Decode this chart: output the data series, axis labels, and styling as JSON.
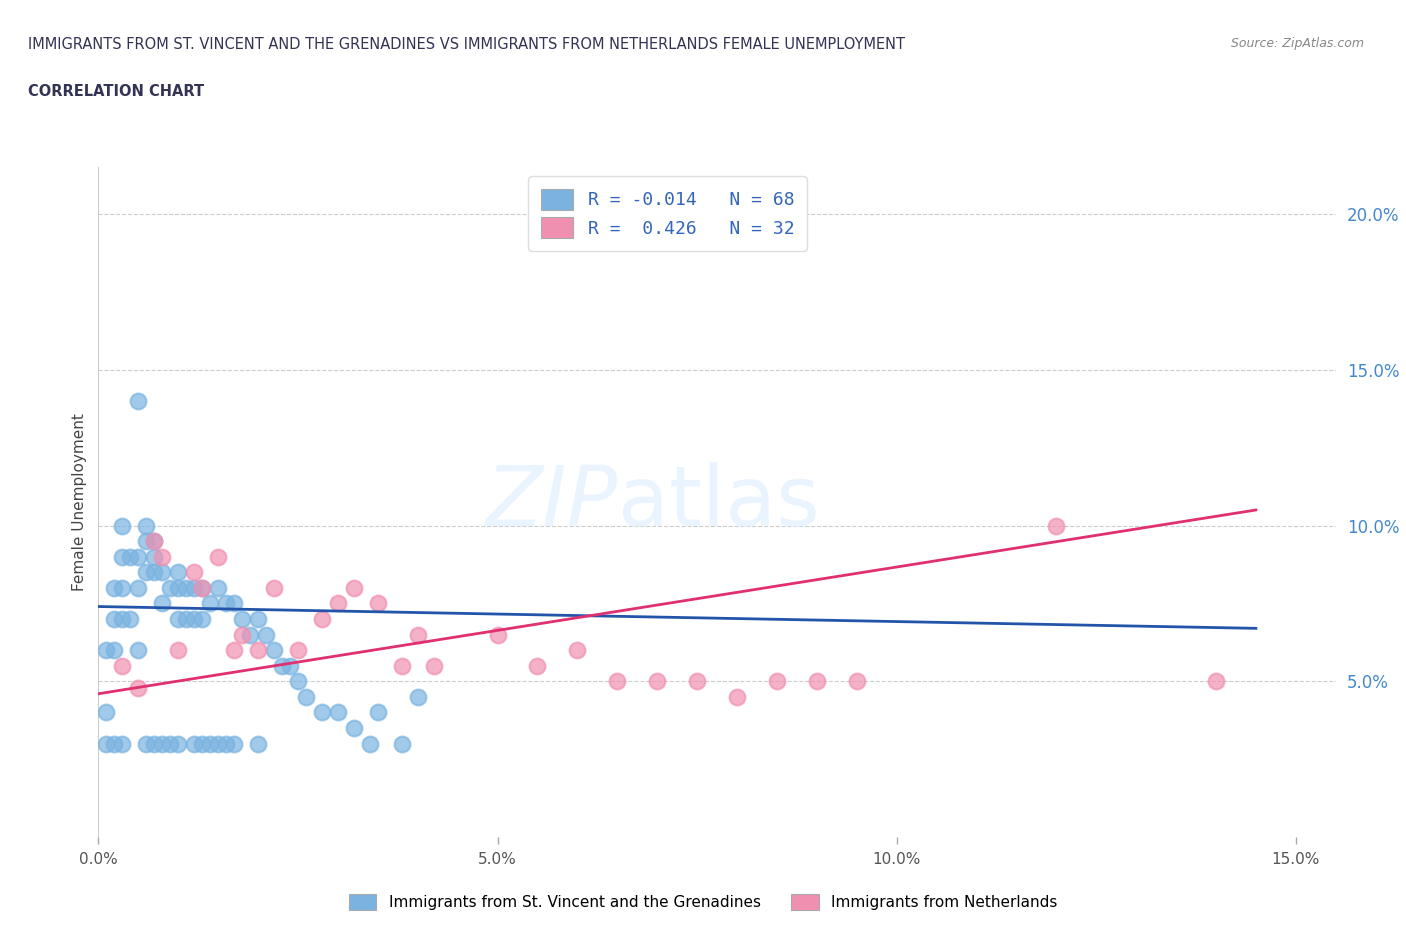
{
  "title_line1": "IMMIGRANTS FROM ST. VINCENT AND THE GRENADINES VS IMMIGRANTS FROM NETHERLANDS FEMALE UNEMPLOYMENT",
  "title_line2": "CORRELATION CHART",
  "source": "Source: ZipAtlas.com",
  "ylabel": "Female Unemployment",
  "xlim": [
    0.0,
    0.155
  ],
  "ylim": [
    0.0,
    0.215
  ],
  "xticks": [
    0.0,
    0.05,
    0.1,
    0.15
  ],
  "xticklabels": [
    "0.0%",
    "5.0%",
    "10.0%",
    "15.0%"
  ],
  "yticks": [
    0.05,
    0.1,
    0.15,
    0.2
  ],
  "yticklabels": [
    "5.0%",
    "10.0%",
    "15.0%",
    "20.0%"
  ],
  "grid_color": "#cccccc",
  "blue_color": "#7ab3e0",
  "pink_color": "#f090b0",
  "blue_line_color": "#2255aa",
  "pink_line_color": "#e03070",
  "watermark1": "ZIP",
  "watermark2": "atlas",
  "legend_R1": "-0.014",
  "legend_N1": "68",
  "legend_R2": "0.426",
  "legend_N2": "32",
  "blue_trend_x0": 0.0,
  "blue_trend_x1": 0.145,
  "blue_trend_y0": 0.074,
  "blue_trend_y1": 0.067,
  "pink_trend_x0": 0.0,
  "pink_trend_x1": 0.145,
  "pink_trend_y0": 0.046,
  "pink_trend_y1": 0.105,
  "blue_x": [
    0.001,
    0.001,
    0.001,
    0.002,
    0.002,
    0.002,
    0.002,
    0.003,
    0.003,
    0.003,
    0.003,
    0.003,
    0.004,
    0.004,
    0.005,
    0.005,
    0.005,
    0.005,
    0.006,
    0.006,
    0.006,
    0.006,
    0.007,
    0.007,
    0.007,
    0.007,
    0.008,
    0.008,
    0.008,
    0.009,
    0.009,
    0.01,
    0.01,
    0.01,
    0.01,
    0.011,
    0.011,
    0.012,
    0.012,
    0.012,
    0.013,
    0.013,
    0.013,
    0.014,
    0.014,
    0.015,
    0.015,
    0.016,
    0.016,
    0.017,
    0.017,
    0.018,
    0.019,
    0.02,
    0.02,
    0.021,
    0.022,
    0.023,
    0.024,
    0.025,
    0.026,
    0.028,
    0.03,
    0.032,
    0.034,
    0.035,
    0.038,
    0.04
  ],
  "blue_y": [
    0.06,
    0.04,
    0.03,
    0.08,
    0.07,
    0.06,
    0.03,
    0.1,
    0.09,
    0.08,
    0.07,
    0.03,
    0.09,
    0.07,
    0.14,
    0.09,
    0.08,
    0.06,
    0.1,
    0.095,
    0.085,
    0.03,
    0.095,
    0.09,
    0.085,
    0.03,
    0.085,
    0.075,
    0.03,
    0.08,
    0.03,
    0.085,
    0.08,
    0.07,
    0.03,
    0.08,
    0.07,
    0.08,
    0.07,
    0.03,
    0.08,
    0.07,
    0.03,
    0.075,
    0.03,
    0.08,
    0.03,
    0.075,
    0.03,
    0.075,
    0.03,
    0.07,
    0.065,
    0.07,
    0.03,
    0.065,
    0.06,
    0.055,
    0.055,
    0.05,
    0.045,
    0.04,
    0.04,
    0.035,
    0.03,
    0.04,
    0.03,
    0.045
  ],
  "pink_x": [
    0.003,
    0.005,
    0.007,
    0.008,
    0.01,
    0.012,
    0.013,
    0.015,
    0.017,
    0.018,
    0.02,
    0.022,
    0.025,
    0.028,
    0.03,
    0.032,
    0.035,
    0.038,
    0.04,
    0.042,
    0.05,
    0.055,
    0.06,
    0.065,
    0.07,
    0.075,
    0.08,
    0.085,
    0.09,
    0.095,
    0.12,
    0.14
  ],
  "pink_y": [
    0.055,
    0.048,
    0.095,
    0.09,
    0.06,
    0.085,
    0.08,
    0.09,
    0.06,
    0.065,
    0.06,
    0.08,
    0.06,
    0.07,
    0.075,
    0.08,
    0.075,
    0.055,
    0.065,
    0.055,
    0.065,
    0.055,
    0.06,
    0.05,
    0.05,
    0.05,
    0.045,
    0.05,
    0.05,
    0.05,
    0.1,
    0.05
  ]
}
